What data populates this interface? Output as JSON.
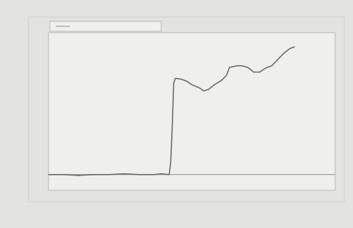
{
  "chart_data": {
    "type": "line",
    "title": "",
    "xlabel": "",
    "ylabel": "",
    "legend": {
      "placement": "top-left",
      "entries": [
        ""
      ]
    },
    "grid": false,
    "xlim": [
      0,
      190
    ],
    "ylim": [
      0,
      10
    ],
    "x_ticks": [],
    "y_ticks": [],
    "reference_line_y": 1.0,
    "series": [
      {
        "line_color": "#6a6a6a",
        "x": [
          0,
          10,
          20,
          30,
          40,
          50,
          60,
          70,
          75,
          80,
          81,
          82,
          83,
          84,
          85,
          88,
          92,
          95,
          100,
          103,
          106,
          110,
          115,
          118,
          120,
          125,
          128,
          132,
          136,
          140,
          143,
          145,
          148,
          152,
          156,
          160,
          163
        ],
        "y": [
          1.0,
          1.0,
          0.95,
          1.0,
          1.0,
          1.05,
          1.0,
          1.0,
          1.05,
          1.0,
          1.8,
          4.0,
          6.8,
          7.1,
          7.1,
          7.05,
          6.9,
          6.7,
          6.5,
          6.3,
          6.4,
          6.7,
          7.0,
          7.3,
          7.8,
          7.9,
          7.9,
          7.8,
          7.5,
          7.5,
          7.7,
          7.8,
          7.9,
          8.3,
          8.7,
          9.0,
          9.1
        ]
      }
    ]
  }
}
